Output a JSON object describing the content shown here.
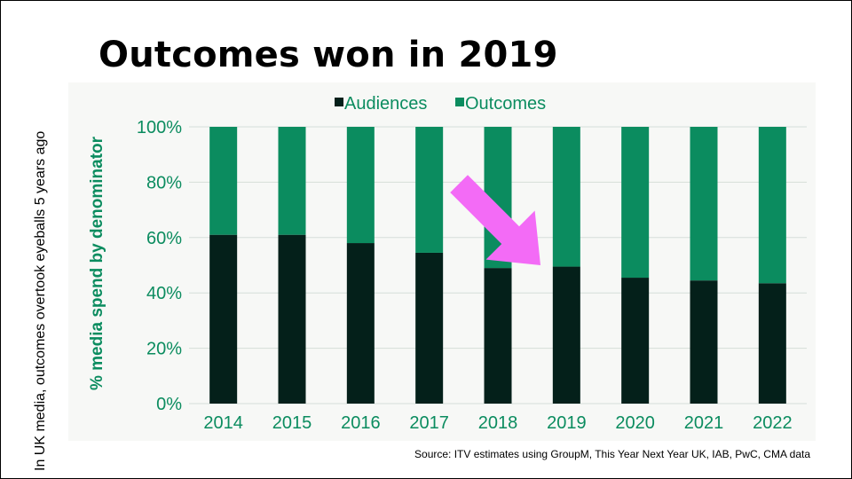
{
  "slide": {
    "title": "Outcomes won in 2019",
    "side_note": "In UK media, outcomes overtook eyeballs 5 years ago",
    "source": "Source: ITV estimates using GroupM, This Year Next Year UK, IAB, PwC, CMA data"
  },
  "colors": {
    "audiences": "#04201a",
    "outcomes": "#0b8c5f",
    "axis_text": "#0b8c5f",
    "arrow": "#f36bf6",
    "grid": "#d6ded9"
  },
  "chart_data": {
    "type": "bar",
    "stacked": true,
    "categories": [
      "2014",
      "2015",
      "2016",
      "2017",
      "2018",
      "2019",
      "2020",
      "2021",
      "2022"
    ],
    "series": [
      {
        "name": "Audiences",
        "values": [
          61,
          61,
          58,
          54.5,
          49,
          49.5,
          45.5,
          44.5,
          43.5
        ]
      },
      {
        "name": "Outcomes",
        "values": [
          39,
          39,
          42,
          45.5,
          51,
          50.5,
          54.5,
          55.5,
          56.5
        ]
      }
    ],
    "ylabel": "% media spend by denominator",
    "ylim": [
      0,
      100
    ],
    "yticks": [
      "0%",
      "20%",
      "40%",
      "60%",
      "80%",
      "100%"
    ],
    "legend_position": "top",
    "grid": true,
    "annotation": {
      "type": "arrow",
      "icon": "arrow-down-right-icon",
      "points_to": "2019"
    }
  }
}
